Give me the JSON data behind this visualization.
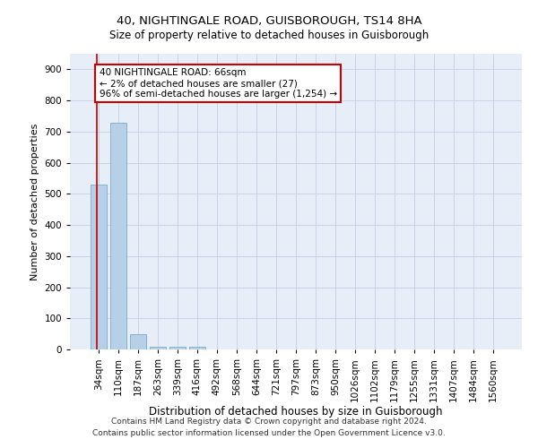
{
  "title": "40, NIGHTINGALE ROAD, GUISBOROUGH, TS14 8HA",
  "subtitle": "Size of property relative to detached houses in Guisborough",
  "xlabel": "Distribution of detached houses by size in Guisborough",
  "ylabel": "Number of detached properties",
  "footnote1": "Contains HM Land Registry data © Crown copyright and database right 2024.",
  "footnote2": "Contains public sector information licensed under the Open Government Licence v3.0.",
  "categories": [
    "34sqm",
    "110sqm",
    "187sqm",
    "263sqm",
    "339sqm",
    "416sqm",
    "492sqm",
    "568sqm",
    "644sqm",
    "721sqm",
    "797sqm",
    "873sqm",
    "950sqm",
    "1026sqm",
    "1102sqm",
    "1179sqm",
    "1255sqm",
    "1331sqm",
    "1407sqm",
    "1484sqm",
    "1560sqm"
  ],
  "values": [
    530,
    727,
    48,
    10,
    10,
    10,
    0,
    0,
    0,
    0,
    0,
    0,
    0,
    0,
    0,
    0,
    0,
    0,
    0,
    0,
    0
  ],
  "bar_color": "#b8cfe8",
  "bar_edge_color": "#7aaad0",
  "grid_color": "#c8d4e8",
  "background_color": "#e8eef8",
  "annotation_text": "40 NIGHTINGALE ROAD: 66sqm\n← 2% of detached houses are smaller (27)\n96% of semi-detached houses are larger (1,254) →",
  "annotation_box_color": "#cc0000",
  "ylim_max": 950,
  "yticks": [
    0,
    100,
    200,
    300,
    400,
    500,
    600,
    700,
    800,
    900
  ],
  "title_fontsize": 9.5,
  "subtitle_fontsize": 8.5,
  "ylabel_fontsize": 8,
  "xlabel_fontsize": 8.5,
  "tick_fontsize": 7.5,
  "annot_fontsize": 7.5,
  "footnote_fontsize": 6.5,
  "red_line_x": -0.06
}
